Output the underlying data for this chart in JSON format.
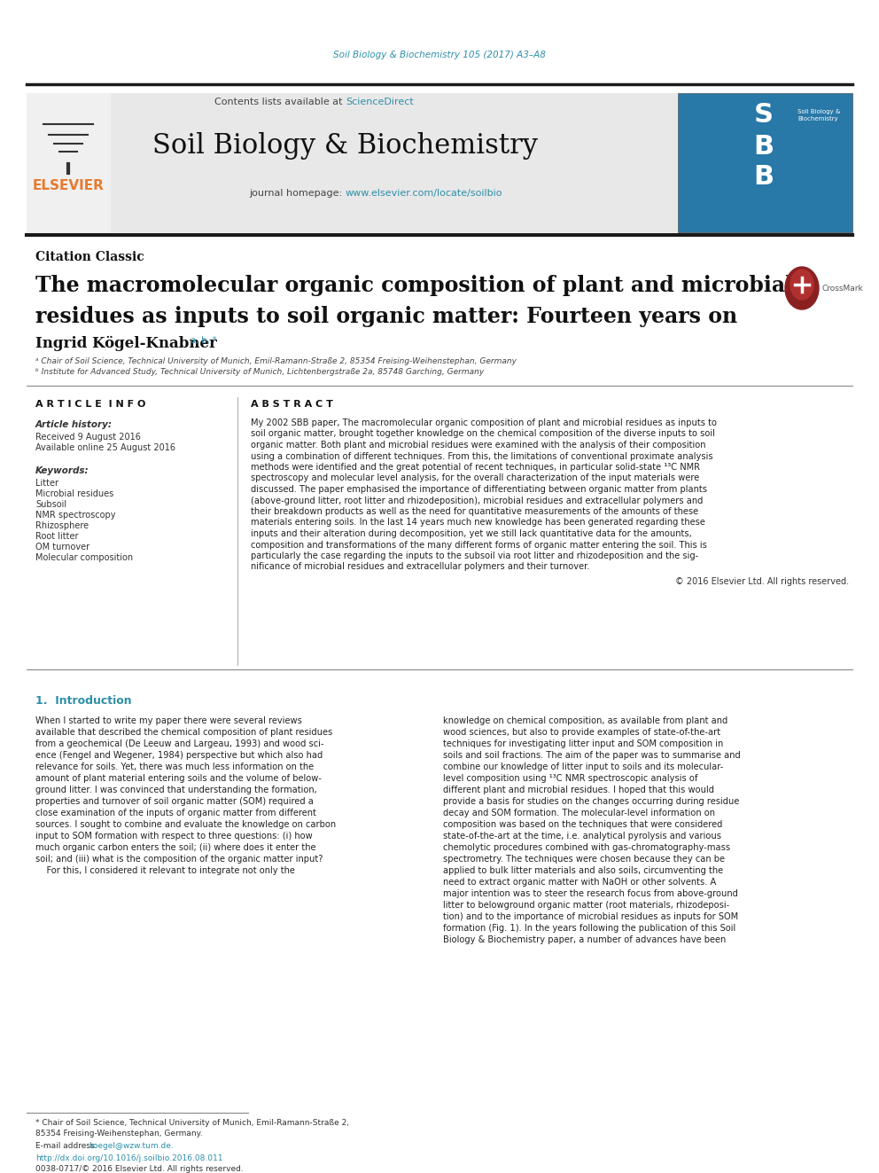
{
  "bg_color": "#ffffff",
  "journal_citation_color": "#2e8fa8",
  "journal_citation": "Soil Biology & Biochemistry 105 (2017) A3–A8",
  "header_bg": "#e8e8e8",
  "contents_text": "Contents lists available at ",
  "sciencedirect_text": "ScienceDirect",
  "sciencedirect_color": "#2e8fa8",
  "journal_name": "Soil Biology & Biochemistry",
  "homepage_label": "journal homepage: ",
  "homepage_url": "www.elsevier.com/locate/soilbio",
  "homepage_url_color": "#2e8fa8",
  "elsevier_color": "#e87a2e",
  "citation_classic_label": "Citation Classic",
  "paper_title_line1": "The macromolecular organic composition of plant and microbial",
  "paper_title_line2": "residues as inputs to soil organic matter: Fourteen years on",
  "author_name": "Ingrid Kögel-Knabner",
  "author_superscript": "a, b, *",
  "affil_a": "ᵃ Chair of Soil Science, Technical University of Munich, Emil-Ramann-Straße 2, 85354 Freising-Weihenstephan, Germany",
  "affil_b": "ᵇ Institute for Advanced Study, Technical University of Munich, Lichtenbergstraße 2a, 85748 Garching, Germany",
  "article_info_label": "A R T I C L E  I N F O",
  "abstract_label": "A B S T R A C T",
  "article_history_label": "Article history:",
  "received_text": "Received 9 August 2016",
  "available_text": "Available online 25 August 2016",
  "keywords_label": "Keywords:",
  "keywords": [
    "Litter",
    "Microbial residues",
    "Subsoil",
    "NMR spectroscopy",
    "Rhizosphere",
    "Root litter",
    "OM turnover",
    "Molecular composition"
  ],
  "copyright_text": "© 2016 Elsevier Ltd. All rights reserved.",
  "intro_header": "1.  Introduction",
  "footnote_line1": "* Chair of Soil Science, Technical University of Munich, Emil-Ramann-Straße 2,",
  "footnote_line2": "85354 Freising-Weihenstephan, Germany.",
  "email_label": "E-mail address: ",
  "email": "koegel@wzw.tum.de.",
  "doi_text": "http://dx.doi.org/10.1016/j.soilbio.2016.08.011",
  "issn_text": "0038-0717/© 2016 Elsevier Ltd. All rights reserved.",
  "abstract_lines": [
    "My 2002 SBB paper, The macromolecular organic composition of plant and microbial residues as inputs to",
    "soil organic matter, brought together knowledge on the chemical composition of the diverse inputs to soil",
    "organic matter. Both plant and microbial residues were examined with the analysis of their composition",
    "using a combination of different techniques. From this, the limitations of conventional proximate analysis",
    "methods were identified and the great potential of recent techniques, in particular solid-state ¹³C NMR",
    "spectroscopy and molecular level analysis, for the overall characterization of the input materials were",
    "discussed. The paper emphasised the importance of differentiating between organic matter from plants",
    "(above-ground litter, root litter and rhizodeposition), microbial residues and extracellular polymers and",
    "their breakdown products as well as the need for quantitative measurements of the amounts of these",
    "materials entering soils. In the last 14 years much new knowledge has been generated regarding these",
    "inputs and their alteration during decomposition, yet we still lack quantitative data for the amounts,",
    "composition and transformations of the many different forms of organic matter entering the soil. This is",
    "particularly the case regarding the inputs to the subsoil via root litter and rhizodeposition and the sig-",
    "nificance of microbial residues and extracellular polymers and their turnover."
  ],
  "intro_col1_lines": [
    "When I started to write my paper there were several reviews",
    "available that described the chemical composition of plant residues",
    "from a geochemical (De Leeuw and Largeau, 1993) and wood sci-",
    "ence (Fengel and Wegener, 1984) perspective but which also had",
    "relevance for soils. Yet, there was much less information on the",
    "amount of plant material entering soils and the volume of below-",
    "ground litter. I was convinced that understanding the formation,",
    "properties and turnover of soil organic matter (SOM) required a",
    "close examination of the inputs of organic matter from different",
    "sources. I sought to combine and evaluate the knowledge on carbon",
    "input to SOM formation with respect to three questions: (i) how",
    "much organic carbon enters the soil; (ii) where does it enter the",
    "soil; and (iii) what is the composition of the organic matter input?",
    "    For this, I considered it relevant to integrate not only the"
  ],
  "intro_col2_lines": [
    "knowledge on chemical composition, as available from plant and",
    "wood sciences, but also to provide examples of state-of-the-art",
    "techniques for investigating litter input and SOM composition in",
    "soils and soil fractions. The aim of the paper was to summarise and",
    "combine our knowledge of litter input to soils and its molecular-",
    "level composition using ¹³C NMR spectroscopic analysis of",
    "different plant and microbial residues. I hoped that this would",
    "provide a basis for studies on the changes occurring during residue",
    "decay and SOM formation. The molecular-level information on",
    "composition was based on the techniques that were considered",
    "state-of-the-art at the time, i.e. analytical pyrolysis and various",
    "chemolytic procedures combined with gas-chromatography-mass",
    "spectrometry. The techniques were chosen because they can be",
    "applied to bulk litter materials and also soils, circumventing the",
    "need to extract organic matter with NaOH or other solvents. A",
    "major intention was to steer the research focus from above-ground",
    "litter to belowground organic matter (root materials, rhizodeposi-",
    "tion) and to the importance of microbial residues as inputs for SOM",
    "formation (Fig. 1). In the years following the publication of this Soil",
    "Biology & Biochemistry paper, a number of advances have been"
  ]
}
